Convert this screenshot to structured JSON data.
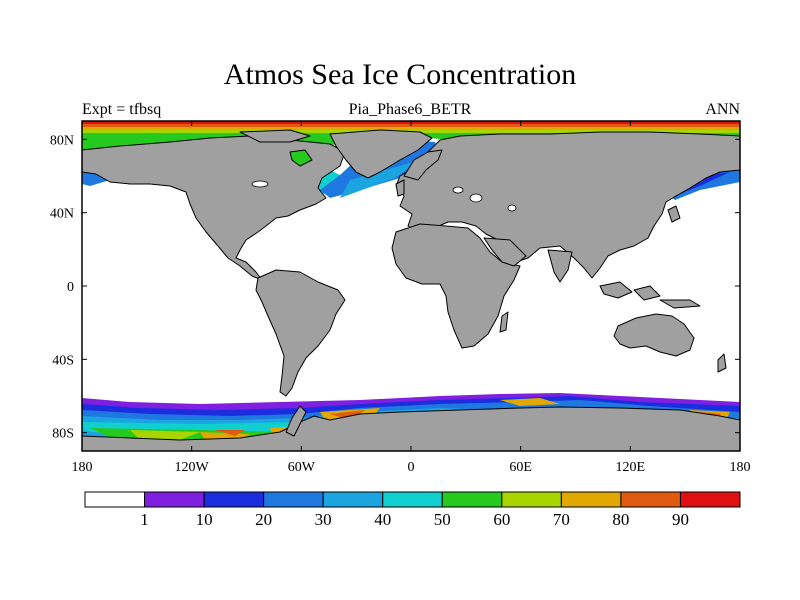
{
  "title": "Atmos Sea Ice Concentration",
  "subtitle_left": "Expt = tfbsq",
  "subtitle_center": "Pia_Phase6_BETR",
  "subtitle_right": "ANN",
  "map": {
    "projection": "cylindrical equidistant",
    "lon_range": [
      -180,
      180
    ],
    "lat_range": [
      -90,
      90
    ],
    "x_ticks": [
      {
        "value": -180,
        "label": "180"
      },
      {
        "value": -120,
        "label": "120W"
      },
      {
        "value": -60,
        "label": "60W"
      },
      {
        "value": 0,
        "label": "0"
      },
      {
        "value": 60,
        "label": "60E"
      },
      {
        "value": 120,
        "label": "120E"
      },
      {
        "value": 180,
        "label": "180"
      }
    ],
    "y_ticks": [
      {
        "value": 80,
        "label": "80N"
      },
      {
        "value": 40,
        "label": "40N"
      },
      {
        "value": 0,
        "label": "0"
      },
      {
        "value": -40,
        "label": "40S"
      },
      {
        "value": -80,
        "label": "80S"
      }
    ],
    "land_color": "#a0a0a0",
    "ocean_color": "#ffffff"
  },
  "colorbar": {
    "labels": [
      "1",
      "10",
      "20",
      "30",
      "40",
      "50",
      "60",
      "70",
      "80",
      "90"
    ],
    "colors": [
      "#ffffff",
      "#7f1fe0",
      "#1a2ee0",
      "#1f78e0",
      "#1aa4e0",
      "#10cfcf",
      "#26c91e",
      "#a8d400",
      "#e0a800",
      "#e05a10",
      "#e01010"
    ]
  }
}
